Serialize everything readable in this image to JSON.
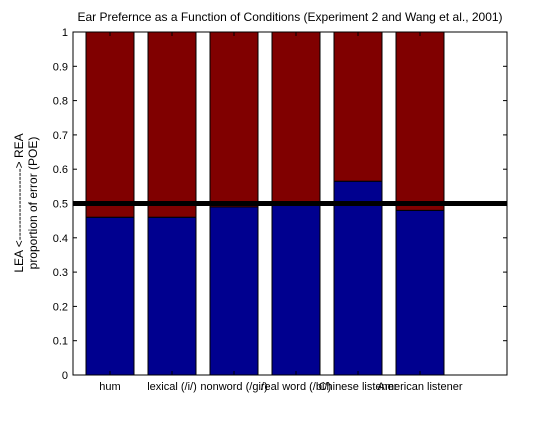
{
  "chart_data": {
    "type": "bar",
    "stacked": true,
    "title": "Ear Prefernce as a Function of Conditions (Experiment 2 and Wang et al., 2001)",
    "ylabel_line1": "LEA <------------------> REA",
    "ylabel_line2": "proportion of error (POE)",
    "xlabel": "",
    "ylim": [
      0,
      1
    ],
    "yticks": [
      "0",
      "0.1",
      "0.2",
      "0.3",
      "0.4",
      "0.5",
      "0.6",
      "0.7",
      "0.8",
      "0.9",
      "1"
    ],
    "categories": [
      "hum",
      "lexical (/i/)",
      "nonword (/gi/)",
      "real word (/bi/)",
      "Chinese listener",
      "American listener"
    ],
    "series": [
      {
        "values": [
          0.46,
          0.46,
          0.49,
          0.495,
          0.565,
          0.48
        ],
        "color": "#00008f"
      },
      {
        "values": [
          0.54,
          0.54,
          0.51,
          0.505,
          0.435,
          0.52
        ],
        "color": "#800000"
      }
    ],
    "reference_line": {
      "y": 0.5,
      "color": "#000000"
    },
    "grid": false
  }
}
